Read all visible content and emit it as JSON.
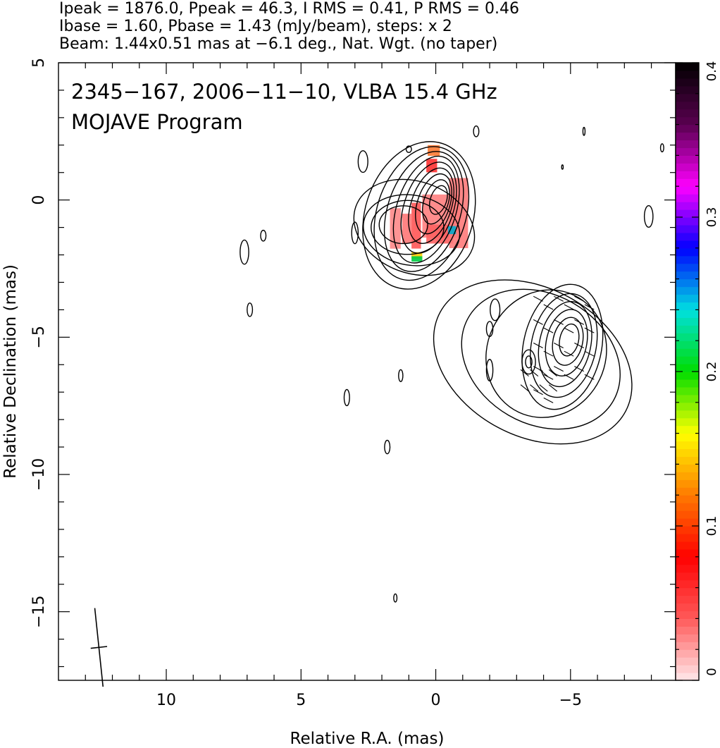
{
  "header": {
    "line1": "Ipeak = 1876.0, Ppeak = 46.3, I RMS = 0.41, P RMS = 0.46",
    "line2": "Ibase = 1.60, Pbase = 1.43 (mJy/beam), steps: x 2",
    "line3": "Beam: 1.44x0.51 mas at −6.1 deg., Nat. Wgt. (no taper)"
  },
  "chart_data": {
    "type": "contour",
    "title_line1": "2345−167, 2006−11−10, VLBA 15.4 GHz",
    "title_line2": "MOJAVE Program",
    "xlabel": "Relative R.A. (mas)",
    "ylabel": "Relative Declination (mas)",
    "xlim": [
      14,
      -8.9
    ],
    "ylim": [
      -17.5,
      5
    ],
    "x_ticks": [
      10,
      5,
      0,
      -5
    ],
    "x_tick_labels": [
      "10",
      "5",
      "0",
      "−5"
    ],
    "y_ticks": [
      5,
      0,
      -5,
      -10,
      -15
    ],
    "y_tick_labels": [
      "5",
      "0",
      "−5",
      "−10",
      "−15"
    ],
    "colorbar": {
      "min": 0,
      "max": 0.4,
      "ticks": [
        0,
        0.1,
        0.2,
        0.3,
        0.4
      ],
      "tick_labels": [
        "0",
        "0.1",
        "0.2",
        "0.3",
        "0.4"
      ],
      "colors": [
        "#ffe8ea",
        "#ff5a5a",
        "#ff0000",
        "#ff7a00",
        "#ffff00",
        "#00dd00",
        "#00e0e0",
        "#0000ff",
        "#ff00ff",
        "#5a0050",
        "#000000"
      ]
    },
    "core": {
      "ra": -0.1,
      "dec": 0.0,
      "contour_levels": 9
    },
    "jet_component": {
      "ra": -4.9,
      "dec": -5.1,
      "contour_levels": 6
    },
    "beam": {
      "major_mas": 1.44,
      "minor_mas": 0.51,
      "pa_deg": -6.1
    },
    "colors": {
      "contour": "#000000",
      "frame": "#000000"
    }
  }
}
